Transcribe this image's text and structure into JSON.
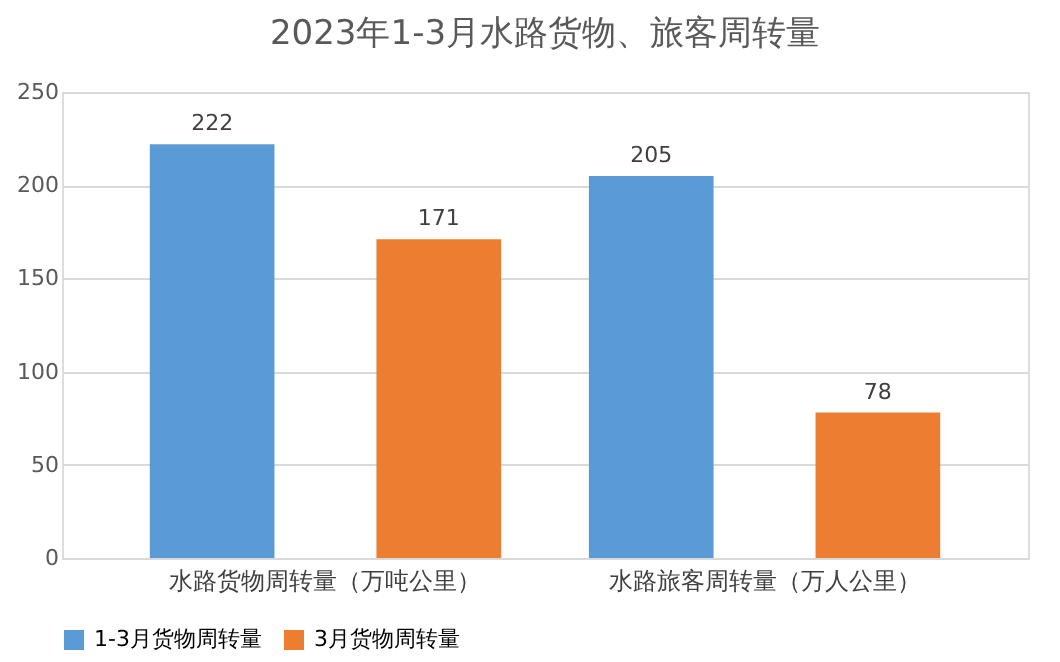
{
  "chart_data": {
    "type": "bar",
    "title": "2023年1-3月水路货物、旅客周转量",
    "categories": [
      "水路货物周转量（万吨公里）",
      "水路旅客周转量（万人公里）"
    ],
    "series": [
      {
        "name": "1-3月货物周转量",
        "color": "#5b9bd5",
        "values": [
          222,
          205
        ]
      },
      {
        "name": "3月货物周转量",
        "color": "#ed7d31",
        "values": [
          171,
          78
        ]
      }
    ],
    "ylim": [
      0,
      250
    ],
    "yticks": [
      0,
      50,
      100,
      150,
      200,
      250
    ],
    "grid": "y",
    "legend": "bottom",
    "data_labels": true
  }
}
